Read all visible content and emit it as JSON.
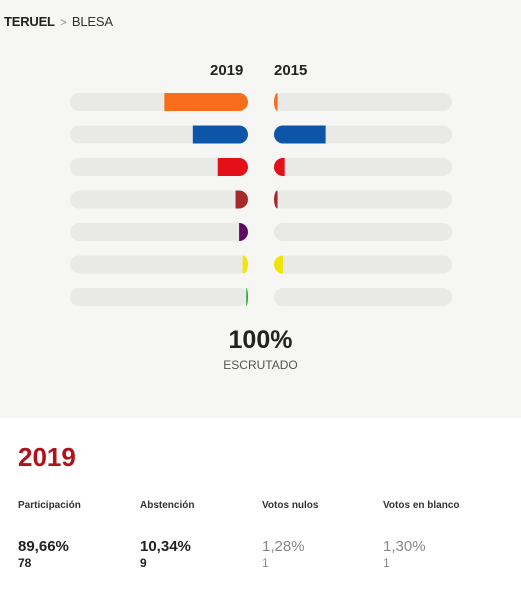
{
  "breadcrumb": {
    "province": "TERUEL",
    "separator": ">",
    "municipality": "BLESA"
  },
  "chart_data": {
    "type": "bar",
    "series": [
      {
        "name": "2019",
        "values": [
          47,
          31,
          17,
          7,
          5,
          3,
          1
        ]
      },
      {
        "name": "2015",
        "values": [
          2,
          29,
          6,
          2,
          0,
          5,
          0
        ]
      }
    ],
    "colors": [
      "#f76d1c",
      "#0d55a6",
      "#e3101a",
      "#a52a2a",
      "#5b0b60",
      "#f2e500",
      "#1fb11d"
    ],
    "xlim": [
      0,
      100
    ],
    "grid": false
  },
  "scrutiny": {
    "percent": "100%",
    "label": "ESCRUTADO"
  },
  "summary": {
    "year": "2019",
    "participacion": {
      "label": "Participación",
      "percent": "89,66%",
      "count": "78"
    },
    "abstencion": {
      "label": "Abstención",
      "percent": "10,34%",
      "count": "9"
    },
    "nulos": {
      "label": "Votos nulos",
      "percent": "1,28%",
      "count": "1"
    },
    "blanco": {
      "label": "Votos en blanco",
      "percent": "1,30%",
      "count": "1"
    }
  }
}
